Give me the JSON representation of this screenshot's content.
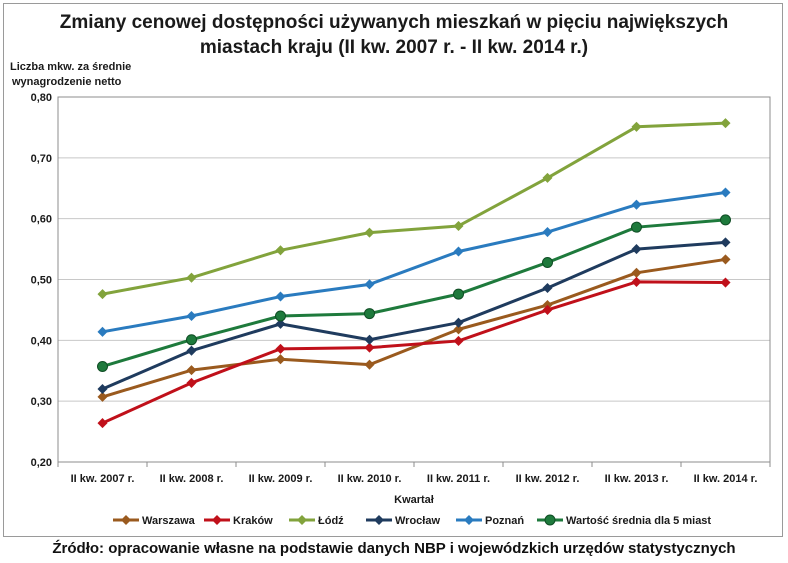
{
  "chart_data": {
    "type": "line",
    "title": "Zmiany cenowej dostępności używanych mieszkań w pięciu największych miastach kraju (II kw. 2007 r. - II kw. 2014 r.)",
    "title_lines": [
      "Zmiany cenowej dostępności używanych mieszkań w pięciu największych",
      "miastach kraju (II kw. 2007 r. - II kw. 2014 r.)"
    ],
    "ylabel_lines": [
      "Liczba mkw. za średnie",
      "wynagrodzenie netto"
    ],
    "xlabel": "Kwartał",
    "ylim": [
      0.2,
      0.8
    ],
    "yticks": [
      "0,20",
      "0,30",
      "0,40",
      "0,50",
      "0,60",
      "0,70",
      "0,80"
    ],
    "grid": true,
    "legend_position": "bottom",
    "categories": [
      "II kw. 2007 r.",
      "II kw. 2008 r.",
      "II kw. 2009 r.",
      "II kw. 2010 r.",
      "II kw. 2011 r.",
      "II kw. 2012 r.",
      "II kw. 2013 r.",
      "II kw. 2014 r."
    ],
    "series": [
      {
        "name": "Warszawa",
        "color": "#9a5a1e",
        "marker": "diamond",
        "values": [
          0.307,
          0.351,
          0.369,
          0.36,
          0.418,
          0.458,
          0.511,
          0.533
        ]
      },
      {
        "name": "Kraków",
        "color": "#c0101a",
        "marker": "diamond",
        "values": [
          0.264,
          0.33,
          0.386,
          0.388,
          0.399,
          0.45,
          0.496,
          0.495
        ]
      },
      {
        "name": "Łódź",
        "color": "#82a33c",
        "marker": "diamond",
        "values": [
          0.476,
          0.503,
          0.548,
          0.577,
          0.588,
          0.667,
          0.751,
          0.757
        ]
      },
      {
        "name": "Wrocław",
        "color": "#1f3b5e",
        "marker": "diamond",
        "values": [
          0.32,
          0.383,
          0.427,
          0.401,
          0.429,
          0.486,
          0.55,
          0.561
        ]
      },
      {
        "name": "Poznań",
        "color": "#2a7bbf",
        "marker": "diamond",
        "values": [
          0.414,
          0.44,
          0.472,
          0.492,
          0.546,
          0.578,
          0.623,
          0.643
        ]
      },
      {
        "name": "Wartość średnia dla 5 miast",
        "color": "#1e7a3c",
        "marker": "circle",
        "values": [
          0.357,
          0.401,
          0.44,
          0.444,
          0.476,
          0.528,
          0.586,
          0.598
        ]
      }
    ]
  },
  "source": "Źródło: opracowanie własne na podstawie danych NBP i wojewódzkich urzędów statystycznych"
}
